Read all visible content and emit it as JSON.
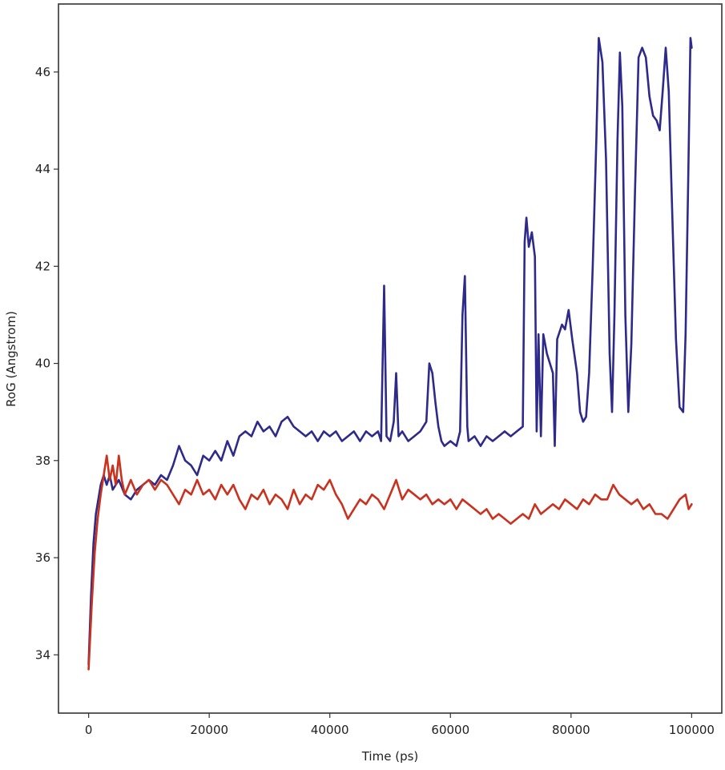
{
  "chart_data": {
    "type": "line",
    "xlabel": "Time (ps)",
    "ylabel": "RoG (Angstrom)",
    "xlim": [
      -5000,
      105000
    ],
    "ylim": [
      32.8,
      47.4
    ],
    "xticks": [
      0,
      20000,
      40000,
      60000,
      80000,
      100000
    ],
    "xtick_labels": [
      "0",
      "20000",
      "40000",
      "60000",
      "80000",
      "100000"
    ],
    "yticks": [
      34,
      36,
      38,
      40,
      42,
      44,
      46
    ],
    "ytick_labels": [
      "34",
      "36",
      "38",
      "40",
      "42",
      "44",
      "46"
    ],
    "grid": false,
    "series": [
      {
        "color": "#2d2a8a",
        "points": [
          [
            0,
            33.8
          ],
          [
            400,
            35.2
          ],
          [
            800,
            36.3
          ],
          [
            1200,
            36.9
          ],
          [
            1600,
            37.2
          ],
          [
            2000,
            37.5
          ],
          [
            2500,
            37.7
          ],
          [
            3000,
            37.5
          ],
          [
            3500,
            37.7
          ],
          [
            4000,
            37.4
          ],
          [
            5000,
            37.6
          ],
          [
            6000,
            37.3
          ],
          [
            7000,
            37.2
          ],
          [
            8000,
            37.4
          ],
          [
            9000,
            37.5
          ],
          [
            10000,
            37.6
          ],
          [
            11000,
            37.5
          ],
          [
            12000,
            37.7
          ],
          [
            13000,
            37.6
          ],
          [
            14000,
            37.9
          ],
          [
            15000,
            38.3
          ],
          [
            16000,
            38.0
          ],
          [
            17000,
            37.9
          ],
          [
            18000,
            37.7
          ],
          [
            19000,
            38.1
          ],
          [
            20000,
            38.0
          ],
          [
            21000,
            38.2
          ],
          [
            22000,
            38.0
          ],
          [
            23000,
            38.4
          ],
          [
            24000,
            38.1
          ],
          [
            25000,
            38.5
          ],
          [
            26000,
            38.6
          ],
          [
            27000,
            38.5
          ],
          [
            28000,
            38.8
          ],
          [
            29000,
            38.6
          ],
          [
            30000,
            38.7
          ],
          [
            31000,
            38.5
          ],
          [
            32000,
            38.8
          ],
          [
            33000,
            38.9
          ],
          [
            34000,
            38.7
          ],
          [
            35000,
            38.6
          ],
          [
            36000,
            38.5
          ],
          [
            37000,
            38.6
          ],
          [
            38000,
            38.4
          ],
          [
            39000,
            38.6
          ],
          [
            40000,
            38.5
          ],
          [
            41000,
            38.6
          ],
          [
            42000,
            38.4
          ],
          [
            43000,
            38.5
          ],
          [
            44000,
            38.6
          ],
          [
            45000,
            38.4
          ],
          [
            46000,
            38.6
          ],
          [
            47000,
            38.5
          ],
          [
            48000,
            38.6
          ],
          [
            48500,
            38.4
          ],
          [
            49000,
            41.6
          ],
          [
            49400,
            38.5
          ],
          [
            50000,
            38.4
          ],
          [
            50600,
            38.8
          ],
          [
            51000,
            39.8
          ],
          [
            51400,
            38.5
          ],
          [
            52000,
            38.6
          ],
          [
            53000,
            38.4
          ],
          [
            54000,
            38.5
          ],
          [
            55000,
            38.6
          ],
          [
            56000,
            38.8
          ],
          [
            56500,
            40.0
          ],
          [
            57000,
            39.8
          ],
          [
            57500,
            39.2
          ],
          [
            58000,
            38.7
          ],
          [
            58500,
            38.4
          ],
          [
            59000,
            38.3
          ],
          [
            60000,
            38.4
          ],
          [
            61000,
            38.3
          ],
          [
            61600,
            38.6
          ],
          [
            62000,
            41.0
          ],
          [
            62400,
            41.8
          ],
          [
            62800,
            38.7
          ],
          [
            63000,
            38.4
          ],
          [
            64000,
            38.5
          ],
          [
            65000,
            38.3
          ],
          [
            66000,
            38.5
          ],
          [
            67000,
            38.4
          ],
          [
            68000,
            38.5
          ],
          [
            69000,
            38.6
          ],
          [
            70000,
            38.5
          ],
          [
            71000,
            38.6
          ],
          [
            72000,
            38.7
          ],
          [
            72300,
            42.5
          ],
          [
            72600,
            43.0
          ],
          [
            73000,
            42.4
          ],
          [
            73500,
            42.7
          ],
          [
            74000,
            42.2
          ],
          [
            74300,
            38.6
          ],
          [
            74600,
            40.6
          ],
          [
            75000,
            38.5
          ],
          [
            75400,
            40.6
          ],
          [
            76000,
            40.2
          ],
          [
            77000,
            39.8
          ],
          [
            77300,
            38.3
          ],
          [
            77700,
            40.5
          ],
          [
            78500,
            40.8
          ],
          [
            79000,
            40.7
          ],
          [
            79600,
            41.1
          ],
          [
            80200,
            40.5
          ],
          [
            81000,
            39.8
          ],
          [
            81500,
            39.0
          ],
          [
            82000,
            38.8
          ],
          [
            82500,
            38.9
          ],
          [
            83000,
            39.8
          ],
          [
            83600,
            42.0
          ],
          [
            84200,
            44.6
          ],
          [
            84600,
            46.7
          ],
          [
            85200,
            46.2
          ],
          [
            85800,
            44.2
          ],
          [
            86400,
            40.2
          ],
          [
            86800,
            39.0
          ],
          [
            87200,
            41.0
          ],
          [
            87700,
            44.6
          ],
          [
            88100,
            46.4
          ],
          [
            88500,
            45.3
          ],
          [
            89000,
            41.0
          ],
          [
            89500,
            39.0
          ],
          [
            90000,
            40.4
          ],
          [
            90600,
            43.5
          ],
          [
            91200,
            46.3
          ],
          [
            91800,
            46.5
          ],
          [
            92400,
            46.3
          ],
          [
            93000,
            45.5
          ],
          [
            93600,
            45.1
          ],
          [
            94200,
            45.0
          ],
          [
            94700,
            44.8
          ],
          [
            95200,
            45.6
          ],
          [
            95700,
            46.5
          ],
          [
            96200,
            45.6
          ],
          [
            96800,
            43.0
          ],
          [
            97400,
            40.5
          ],
          [
            98000,
            39.1
          ],
          [
            98600,
            39.0
          ],
          [
            99000,
            40.6
          ],
          [
            99400,
            43.5
          ],
          [
            99800,
            46.7
          ],
          [
            100000,
            46.5
          ]
        ]
      },
      {
        "color": "#c8321e",
        "points": [
          [
            0,
            33.7
          ],
          [
            500,
            35.0
          ],
          [
            1000,
            36.1
          ],
          [
            1500,
            36.8
          ],
          [
            2000,
            37.3
          ],
          [
            2500,
            37.7
          ],
          [
            3000,
            38.1
          ],
          [
            3500,
            37.6
          ],
          [
            4000,
            37.9
          ],
          [
            4500,
            37.5
          ],
          [
            5000,
            38.1
          ],
          [
            5500,
            37.6
          ],
          [
            6000,
            37.3
          ],
          [
            7000,
            37.6
          ],
          [
            8000,
            37.3
          ],
          [
            9000,
            37.5
          ],
          [
            10000,
            37.6
          ],
          [
            11000,
            37.4
          ],
          [
            12000,
            37.6
          ],
          [
            13000,
            37.5
          ],
          [
            14000,
            37.3
          ],
          [
            15000,
            37.1
          ],
          [
            16000,
            37.4
          ],
          [
            17000,
            37.3
          ],
          [
            18000,
            37.6
          ],
          [
            19000,
            37.3
          ],
          [
            20000,
            37.4
          ],
          [
            21000,
            37.2
          ],
          [
            22000,
            37.5
          ],
          [
            23000,
            37.3
          ],
          [
            24000,
            37.5
          ],
          [
            25000,
            37.2
          ],
          [
            26000,
            37.0
          ],
          [
            27000,
            37.3
          ],
          [
            28000,
            37.2
          ],
          [
            29000,
            37.4
          ],
          [
            30000,
            37.1
          ],
          [
            31000,
            37.3
          ],
          [
            32000,
            37.2
          ],
          [
            33000,
            37.0
          ],
          [
            34000,
            37.4
          ],
          [
            35000,
            37.1
          ],
          [
            36000,
            37.3
          ],
          [
            37000,
            37.2
          ],
          [
            38000,
            37.5
          ],
          [
            39000,
            37.4
          ],
          [
            40000,
            37.6
          ],
          [
            41000,
            37.3
          ],
          [
            42000,
            37.1
          ],
          [
            43000,
            36.8
          ],
          [
            44000,
            37.0
          ],
          [
            45000,
            37.2
          ],
          [
            46000,
            37.1
          ],
          [
            47000,
            37.3
          ],
          [
            48000,
            37.2
          ],
          [
            49000,
            37.0
          ],
          [
            50000,
            37.3
          ],
          [
            51000,
            37.6
          ],
          [
            52000,
            37.2
          ],
          [
            53000,
            37.4
          ],
          [
            54000,
            37.3
          ],
          [
            55000,
            37.2
          ],
          [
            56000,
            37.3
          ],
          [
            57000,
            37.1
          ],
          [
            58000,
            37.2
          ],
          [
            59000,
            37.1
          ],
          [
            60000,
            37.2
          ],
          [
            61000,
            37.0
          ],
          [
            62000,
            37.2
          ],
          [
            63000,
            37.1
          ],
          [
            64000,
            37.0
          ],
          [
            65000,
            36.9
          ],
          [
            66000,
            37.0
          ],
          [
            67000,
            36.8
          ],
          [
            68000,
            36.9
          ],
          [
            69000,
            36.8
          ],
          [
            70000,
            36.7
          ],
          [
            71000,
            36.8
          ],
          [
            72000,
            36.9
          ],
          [
            73000,
            36.8
          ],
          [
            74000,
            37.1
          ],
          [
            75000,
            36.9
          ],
          [
            76000,
            37.0
          ],
          [
            77000,
            37.1
          ],
          [
            78000,
            37.0
          ],
          [
            79000,
            37.2
          ],
          [
            80000,
            37.1
          ],
          [
            81000,
            37.0
          ],
          [
            82000,
            37.2
          ],
          [
            83000,
            37.1
          ],
          [
            84000,
            37.3
          ],
          [
            85000,
            37.2
          ],
          [
            86000,
            37.2
          ],
          [
            87000,
            37.5
          ],
          [
            88000,
            37.3
          ],
          [
            89000,
            37.2
          ],
          [
            90000,
            37.1
          ],
          [
            91000,
            37.2
          ],
          [
            92000,
            37.0
          ],
          [
            93000,
            37.1
          ],
          [
            94000,
            36.9
          ],
          [
            95000,
            36.9
          ],
          [
            96000,
            36.8
          ],
          [
            97000,
            37.0
          ],
          [
            98000,
            37.2
          ],
          [
            99000,
            37.3
          ],
          [
            99500,
            37.0
          ],
          [
            100000,
            37.1
          ]
        ]
      }
    ]
  }
}
